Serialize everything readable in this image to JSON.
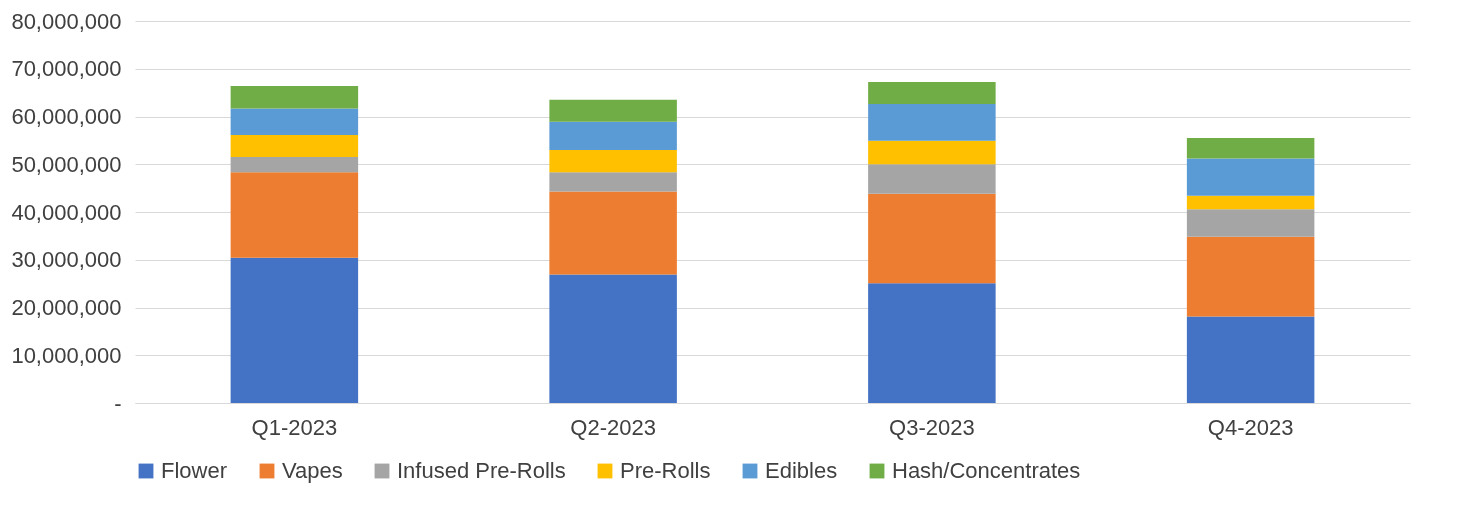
{
  "chart_data": {
    "type": "bar",
    "stacked": true,
    "categories": [
      "Q1-2023",
      "Q2-2023",
      "Q3-2023",
      "Q4-2023"
    ],
    "series": [
      {
        "name": "Flower",
        "color": "#4472c4",
        "values": [
          30400000,
          26900000,
          25100000,
          18100000
        ]
      },
      {
        "name": "Vapes",
        "color": "#ed7d31",
        "values": [
          17900000,
          17400000,
          18700000,
          16700000
        ]
      },
      {
        "name": "Infused Pre-Rolls",
        "color": "#a5a5a5",
        "values": [
          3200000,
          4000000,
          6200000,
          5800000
        ]
      },
      {
        "name": "Pre-Rolls",
        "color": "#ffc000",
        "values": [
          4600000,
          4700000,
          4900000,
          2800000
        ]
      },
      {
        "name": "Edibles",
        "color": "#5b9bd5",
        "values": [
          5600000,
          5900000,
          7700000,
          7800000
        ]
      },
      {
        "name": "Hash/Concentrates",
        "color": "#70ad47",
        "values": [
          4700000,
          4600000,
          4600000,
          4300000
        ]
      }
    ],
    "ylim": [
      0,
      80000000
    ],
    "yticks": [
      {
        "value": 0,
        "label": "-"
      },
      {
        "value": 10000000,
        "label": "10,000,000"
      },
      {
        "value": 20000000,
        "label": "20,000,000"
      },
      {
        "value": 30000000,
        "label": "30,000,000"
      },
      {
        "value": 40000000,
        "label": "40,000,000"
      },
      {
        "value": 50000000,
        "label": "50,000,000"
      },
      {
        "value": 60000000,
        "label": "60,000,000"
      },
      {
        "value": 70000000,
        "label": "70,000,000"
      },
      {
        "value": 80000000,
        "label": "80,000,000"
      }
    ],
    "grid": "y",
    "legend": "bottom"
  }
}
